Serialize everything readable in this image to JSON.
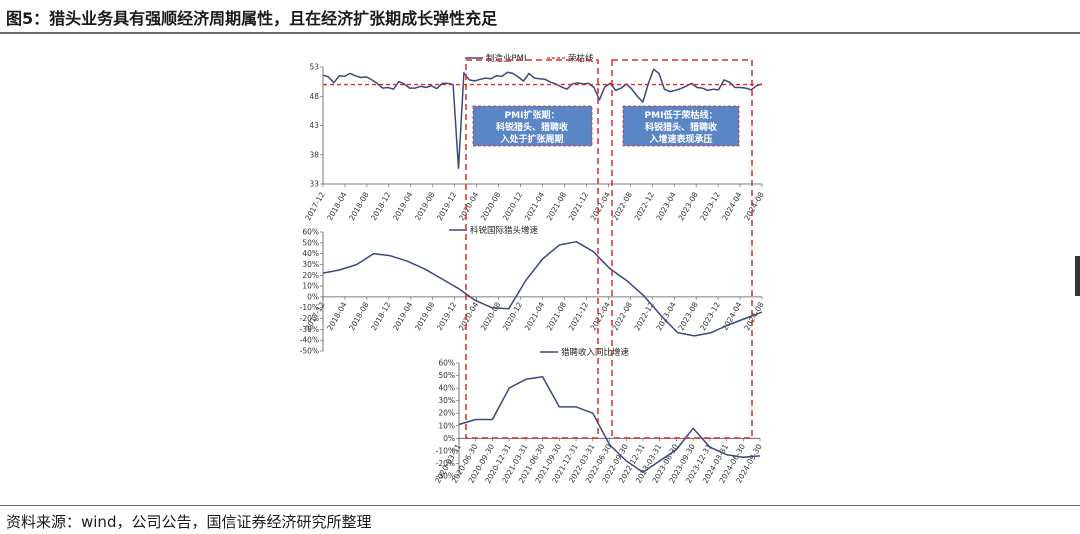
{
  "figure": {
    "title": "图5：猎头业务具有强顺经济周期属性，且在经济扩张期成长弹性充足",
    "source": "资料来源：wind，公司公告，国信证券经济研究所整理"
  },
  "colors": {
    "line": "#3b4a7a",
    "threshold": "#e0282a",
    "box_fill": "#5a86c6",
    "box_border": "#e0282a",
    "axis": "#555555"
  },
  "annotations": [
    {
      "lines": [
        "PMI扩张期：",
        "科锐猎头、猎聘收",
        "入处于扩张周期"
      ]
    },
    {
      "lines": [
        "PMI低于荣枯线：",
        "科锐猎头、猎聘收",
        "入增速表现承压"
      ]
    }
  ],
  "chart_data": [
    {
      "type": "line",
      "legend_position": "top-center",
      "ylim": [
        33,
        53
      ],
      "yticks": [
        "53",
        "48",
        "43",
        "38",
        "33"
      ],
      "xtick_labels": [
        "2017-12",
        "2018-04",
        "2018-08",
        "2018-12",
        "2019-04",
        "2019-08",
        "2019-12",
        "2020-04",
        "2020-08",
        "2020-12",
        "2021-04",
        "2021-08",
        "2021-12",
        "2022-04",
        "2022-08",
        "2022-12",
        "2023-04",
        "2023-08",
        "2023-12",
        "2024-04",
        "2024-08"
      ],
      "series": [
        {
          "name": "制造业PMI",
          "style": "solid",
          "values": [
            51.6,
            51.3,
            50.3,
            51.5,
            51.4,
            51.9,
            51.5,
            51.2,
            51.3,
            50.8,
            50.2,
            49.4,
            49.5,
            49.2,
            50.5,
            50.1,
            49.4,
            49.4,
            49.7,
            49.5,
            49.8,
            49.3,
            50.2,
            50.2,
            50.0,
            35.7,
            52.0,
            50.8,
            50.6,
            50.9,
            51.1,
            51.0,
            51.5,
            51.4,
            52.1,
            51.9,
            51.3,
            50.6,
            51.9,
            51.1,
            51.0,
            50.9,
            50.4,
            50.1,
            49.6,
            49.2,
            50.1,
            50.3,
            50.1,
            50.2,
            49.5,
            47.4,
            49.6,
            50.2,
            49.0,
            49.4,
            50.1,
            49.2,
            48.0,
            47.0,
            50.1,
            52.6,
            51.9,
            49.2,
            48.8,
            49.0,
            49.3,
            49.7,
            50.2,
            49.5,
            49.4,
            49.0,
            49.2,
            49.1,
            50.8,
            50.4,
            49.5,
            49.5,
            49.4,
            49.1,
            49.8,
            50.1
          ]
        },
        {
          "name": "荣枯线",
          "style": "dashed",
          "values": [
            50
          ]
        }
      ]
    },
    {
      "type": "line",
      "legend_position": "top-center",
      "ylim": [
        -50,
        60
      ],
      "yticks": [
        "60%",
        "50%",
        "40%",
        "30%",
        "20%",
        "10%",
        "0%",
        "-10%",
        "-20%",
        "-30%",
        "-40%",
        "-50%"
      ],
      "xtick_labels": [
        "2017-12",
        "2018-04",
        "2018-08",
        "2018-12",
        "2019-04",
        "2019-08",
        "2019-12",
        "2020-04",
        "2020-08",
        "2020-12",
        "2021-04",
        "2021-08",
        "2021-12",
        "2022-04",
        "2022-08",
        "2022-12",
        "2023-04",
        "2023-08",
        "2023-12",
        "2024-04",
        "2024-08"
      ],
      "series": [
        {
          "name": "科锐国际猎头增速",
          "values": [
            22,
            25,
            30,
            40,
            38,
            33,
            26,
            17,
            8,
            -3,
            -10,
            -11,
            15,
            35,
            48,
            51,
            42,
            26,
            15,
            1,
            -17,
            -33,
            -36,
            -33,
            -26,
            -20,
            -14
          ]
        }
      ]
    },
    {
      "type": "line",
      "legend_position": "top-center",
      "ylim": [
        -30,
        60
      ],
      "yticks": [
        "60%",
        "50%",
        "40%",
        "30%",
        "20%",
        "10%",
        "0%",
        "-10%",
        "-20%",
        "-30%"
      ],
      "xtick_labels": [
        "2020-03-31",
        "2020-06-30",
        "2020-09-30",
        "2020-12-31",
        "2021-03-31",
        "2021-06-30",
        "2021-09-30",
        "2021-12-31",
        "2022-03-31",
        "2022-06-30",
        "2022-09-30",
        "2022-12-31",
        "2023-03-31",
        "2023-06-30",
        "2023-09-30",
        "2023-12-31",
        "2024-03-31",
        "2024-06-30",
        "2024-09-30"
      ],
      "series": [
        {
          "name": "猎聘收入同比增速",
          "values": [
            11,
            15,
            15,
            40,
            47,
            49,
            25,
            25,
            20,
            -5,
            -18,
            -27,
            -18,
            -9,
            8,
            -7,
            -13,
            -15,
            -14
          ]
        }
      ]
    }
  ]
}
